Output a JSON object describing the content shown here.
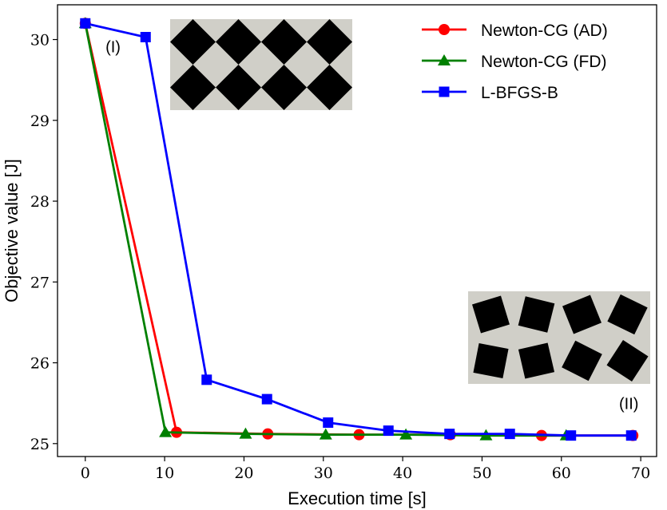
{
  "chart_data": {
    "type": "line",
    "title": "",
    "xlabel": "Execution time [s]",
    "ylabel": "Objective value [J]",
    "xlim": [
      -3.5,
      72
    ],
    "ylim": [
      24.84,
      30.43
    ],
    "xticks": [
      0,
      10,
      20,
      30,
      40,
      50,
      60,
      70
    ],
    "yticks": [
      25,
      26,
      27,
      28,
      29,
      30
    ],
    "grid": false,
    "legend_position": "top-right",
    "series": [
      {
        "name": "Newton-CG (AD)",
        "color": "#ff0000",
        "marker": "circle",
        "x": [
          0,
          11.5,
          23,
          34.5,
          46,
          57.5,
          69
        ],
        "y": [
          30.2,
          25.14,
          25.12,
          25.11,
          25.11,
          25.1,
          25.1
        ]
      },
      {
        "name": "Newton-CG (FD)",
        "color": "#008000",
        "marker": "triangle",
        "x": [
          0,
          10.1,
          20.2,
          30.3,
          40.4,
          50.5,
          60.6
        ],
        "y": [
          30.2,
          25.14,
          25.12,
          25.11,
          25.11,
          25.1,
          25.1
        ]
      },
      {
        "name": "L-BFGS-B",
        "color": "#0000ff",
        "marker": "square",
        "x": [
          0,
          7.6,
          15.3,
          22.9,
          30.6,
          38.2,
          45.9,
          53.5,
          61.2,
          68.8
        ],
        "y": [
          30.2,
          30.03,
          25.79,
          25.55,
          25.26,
          25.16,
          25.12,
          25.12,
          25.1,
          25.1
        ]
      }
    ],
    "annotations": [
      {
        "text": "(I)",
        "x": 3.5,
        "y": 29.84
      },
      {
        "text": "(II)",
        "x": 68.5,
        "y": 25.43
      }
    ],
    "insets": [
      {
        "label": "(I)",
        "pattern": "aligned-diamonds",
        "rows": 2,
        "cols": 4,
        "background": "#d0cfc8"
      },
      {
        "label": "(II)",
        "pattern": "rotated-squares",
        "rows": 2,
        "cols": 4,
        "background": "#d0cfc8"
      }
    ]
  }
}
